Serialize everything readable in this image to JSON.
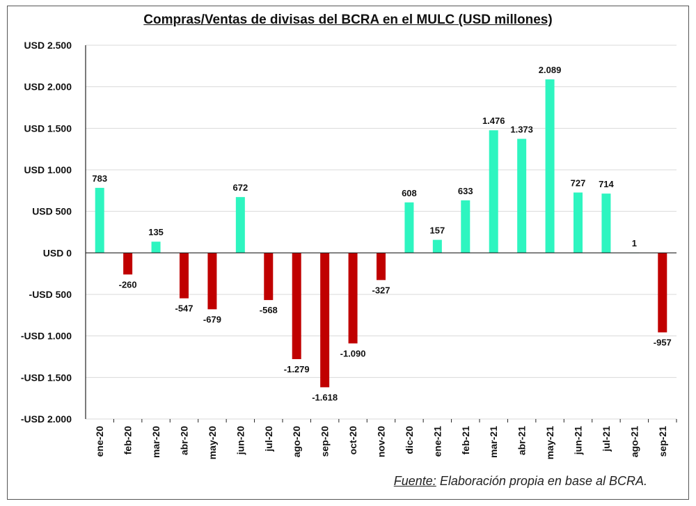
{
  "chart_data": {
    "type": "bar",
    "title": "Compras/Ventas de divisas del BCRA en el MULC (USD millones)",
    "categories": [
      "ene-20",
      "feb-20",
      "mar-20",
      "abr-20",
      "may-20",
      "jun-20",
      "jul-20",
      "ago-20",
      "sep-20",
      "oct-20",
      "nov-20",
      "dic-20",
      "ene-21",
      "feb-21",
      "mar-21",
      "abr-21",
      "may-21",
      "jun-21",
      "jul-21",
      "ago-21",
      "sep-21"
    ],
    "values": [
      783,
      -260,
      135,
      -547,
      -679,
      672,
      -568,
      -1279,
      -1618,
      -1090,
      -327,
      608,
      157,
      633,
      1476,
      1373,
      2089,
      727,
      714,
      1,
      -957
    ],
    "value_labels": [
      "783",
      "-260",
      "135",
      "-547",
      "-679",
      "672",
      "-568",
      "-1.279",
      "-1.618",
      "-1.090",
      "-327",
      "608",
      "157",
      "633",
      "1.476",
      "1.373",
      "2.089",
      "727",
      "714",
      "1",
      "-957"
    ],
    "ylim": [
      -2000,
      2500
    ],
    "yticks": [
      2500,
      2000,
      1500,
      1000,
      500,
      0,
      -500,
      -1000,
      -1500,
      -2000
    ],
    "ytick_labels": [
      "USD 2.500",
      "USD 2.000",
      "USD 1.500",
      "USD 1.000",
      "USD 500",
      "USD 0",
      "-USD 500",
      "-USD 1.000",
      "-USD 1.500",
      "-USD 2.000"
    ],
    "grid": true,
    "xlabel": "",
    "ylabel": "",
    "colors": {
      "positive": "#2EF5C0",
      "negative": "#C00000",
      "grid": "#d9d9d9",
      "axis": "#222222"
    }
  },
  "source": {
    "key": "Fuente:",
    "text": " Elaboración propia en base al BCRA."
  }
}
